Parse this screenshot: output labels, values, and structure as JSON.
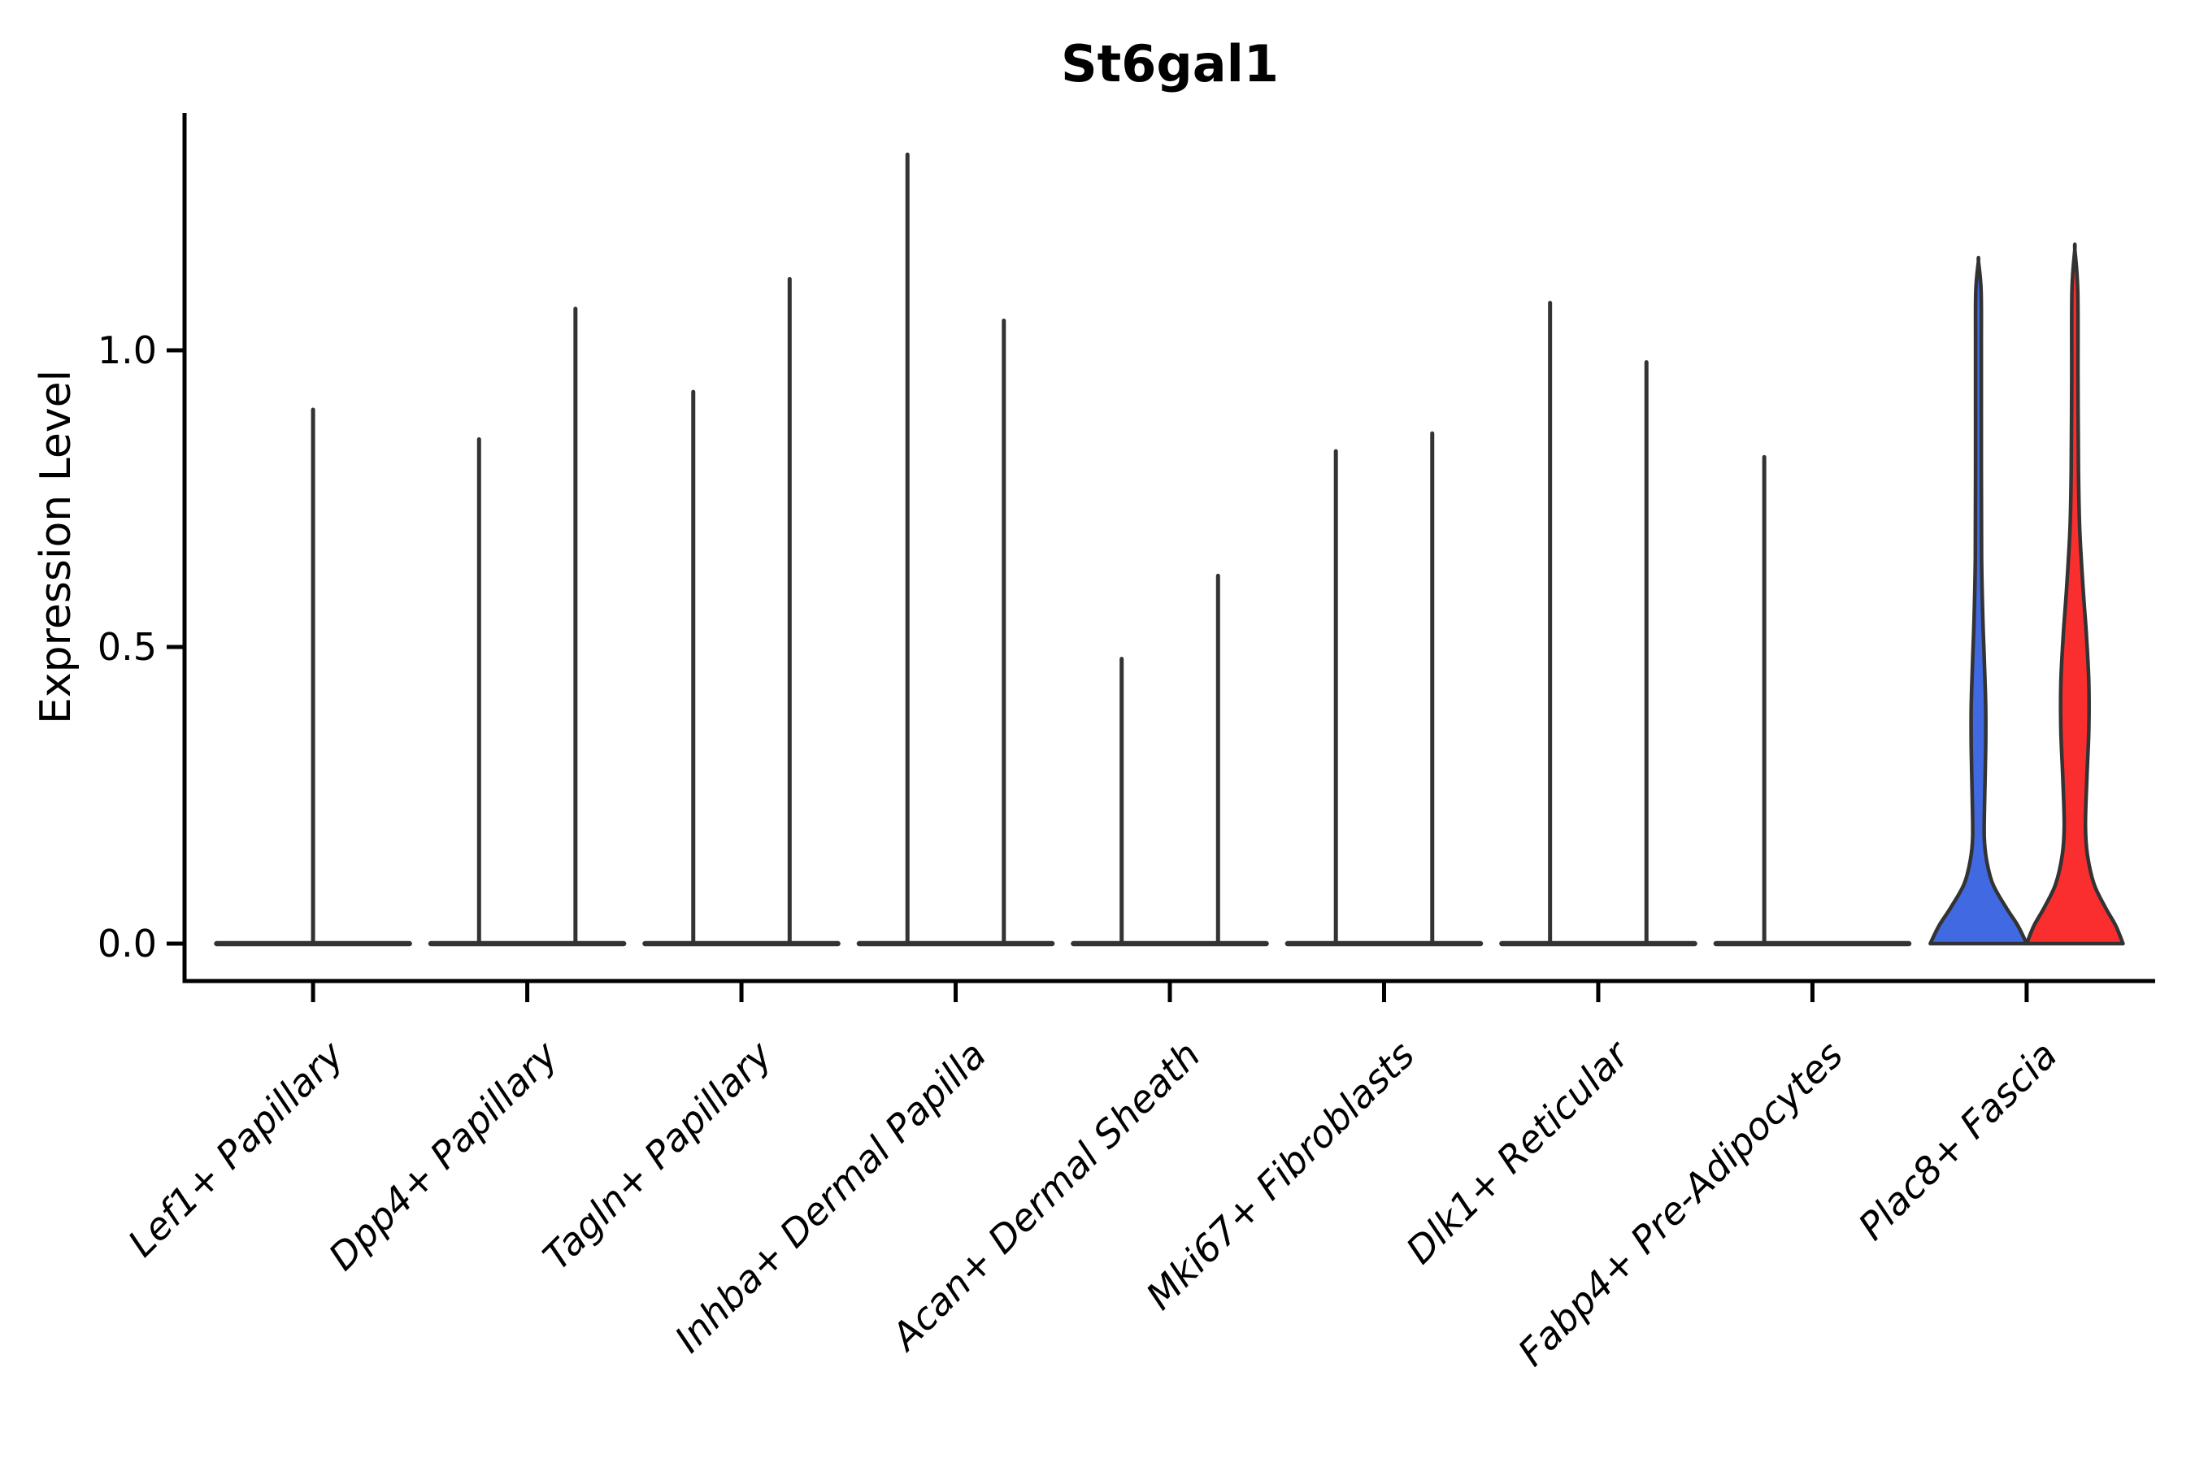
{
  "chart_data": {
    "type": "violin",
    "title": "St6gal1",
    "xlabel": "",
    "ylabel": "Expression Level",
    "ytick_values": [
      0.0,
      0.5,
      1.0
    ],
    "ytick_labels": [
      "0.0",
      "0.5",
      "1.0"
    ],
    "ylim": [
      -0.07,
      1.43
    ],
    "grid": false,
    "legend": "none",
    "background_color": "#ffffff",
    "outline_color": "#333333",
    "split_colors": [
      "#4169E1",
      "#FA2E2E"
    ],
    "categories": [
      "Lef1+ Papillary",
      "Dpp4+ Papillary",
      "Tagln+ Papillary",
      "Inhba+ Dermal Papilla",
      "Acan+ Dermal Sheath",
      "Mki67+ Fibroblasts",
      "Dlk1+ Reticular",
      "Fabp4+ Pre-Adipocytes",
      "Plac8+ Fascia"
    ],
    "violins": [
      {
        "category": "Lef1+ Papillary",
        "position": "center",
        "style": "spike",
        "expression_max": 0.9
      },
      {
        "category": "Dpp4+ Papillary",
        "position": "left",
        "style": "spike",
        "expression_max": 0.85
      },
      {
        "category": "Dpp4+ Papillary",
        "position": "right",
        "style": "spike",
        "expression_max": 1.07
      },
      {
        "category": "Tagln+ Papillary",
        "position": "left",
        "style": "spike",
        "expression_max": 0.93
      },
      {
        "category": "Tagln+ Papillary",
        "position": "right",
        "style": "spike",
        "expression_max": 1.12
      },
      {
        "category": "Inhba+ Dermal Papilla",
        "position": "left",
        "style": "spike",
        "expression_max": 1.33
      },
      {
        "category": "Inhba+ Dermal Papilla",
        "position": "right",
        "style": "spike",
        "expression_max": 1.05
      },
      {
        "category": "Acan+ Dermal Sheath",
        "position": "left",
        "style": "spike",
        "expression_max": 0.48
      },
      {
        "category": "Acan+ Dermal Sheath",
        "position": "right",
        "style": "spike",
        "expression_max": 0.62
      },
      {
        "category": "Mki67+ Fibroblasts",
        "position": "left",
        "style": "spike",
        "expression_max": 0.83
      },
      {
        "category": "Mki67+ Fibroblasts",
        "position": "right",
        "style": "spike",
        "expression_max": 0.86
      },
      {
        "category": "Dlk1+ Reticular",
        "position": "left",
        "style": "spike",
        "expression_max": 1.08
      },
      {
        "category": "Dlk1+ Reticular",
        "position": "right",
        "style": "spike",
        "expression_max": 0.98
      },
      {
        "category": "Fabp4+ Pre-Adipocytes",
        "position": "left",
        "style": "spike",
        "expression_max": 0.82
      },
      {
        "category": "Fabp4+ Pre-Adipocytes",
        "position": "right",
        "style": "flat",
        "expression_max": 0.0
      },
      {
        "category": "Plac8+ Fascia",
        "position": "left",
        "style": "filled",
        "expression_max": 1.15,
        "color": "#4169E1",
        "profile": [
          [
            0,
            1.0
          ],
          [
            0.03,
            0.82
          ],
          [
            0.06,
            0.58
          ],
          [
            0.1,
            0.3
          ],
          [
            0.14,
            0.17
          ],
          [
            0.18,
            0.12
          ],
          [
            0.25,
            0.13
          ],
          [
            0.33,
            0.15
          ],
          [
            0.4,
            0.15
          ],
          [
            0.48,
            0.12
          ],
          [
            0.55,
            0.09
          ],
          [
            0.65,
            0.065
          ],
          [
            0.8,
            0.06
          ],
          [
            1.0,
            0.06
          ],
          [
            1.1,
            0.055
          ],
          [
            1.15,
            0.0
          ]
        ]
      },
      {
        "category": "Plac8+ Fascia",
        "position": "right",
        "style": "filled",
        "expression_max": 1.17,
        "color": "#FA2E2E",
        "profile": [
          [
            0,
            1.0
          ],
          [
            0.03,
            0.85
          ],
          [
            0.06,
            0.64
          ],
          [
            0.1,
            0.4
          ],
          [
            0.15,
            0.26
          ],
          [
            0.2,
            0.22
          ],
          [
            0.28,
            0.25
          ],
          [
            0.36,
            0.29
          ],
          [
            0.44,
            0.29
          ],
          [
            0.52,
            0.24
          ],
          [
            0.6,
            0.17
          ],
          [
            0.7,
            0.1
          ],
          [
            0.8,
            0.075
          ],
          [
            0.95,
            0.065
          ],
          [
            1.1,
            0.06
          ],
          [
            1.17,
            0.0
          ]
        ]
      }
    ]
  }
}
